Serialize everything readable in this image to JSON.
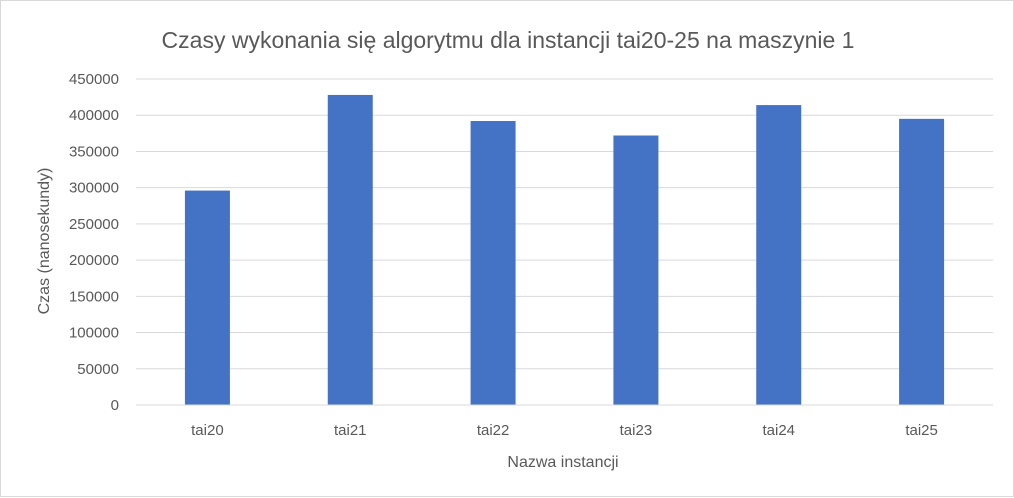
{
  "chart_data": {
    "type": "bar",
    "title": "Czasy wykonania się algorytmu dla instancji tai20-25 na maszynie 1",
    "xlabel": "Nazwa instancji",
    "ylabel": "Czas (nanosekundy)",
    "categories": [
      "tai20",
      "tai21",
      "tai22",
      "tai23",
      "tai24",
      "tai25"
    ],
    "values": [
      296000,
      428000,
      392000,
      372000,
      414000,
      395000
    ],
    "ylim": [
      0,
      450000
    ],
    "yticks": [
      "0",
      "50000",
      "100000",
      "150000",
      "200000",
      "250000",
      "300000",
      "350000",
      "400000",
      "450000"
    ],
    "grid": true,
    "legend": "none",
    "bar_color": "#4472c4"
  }
}
